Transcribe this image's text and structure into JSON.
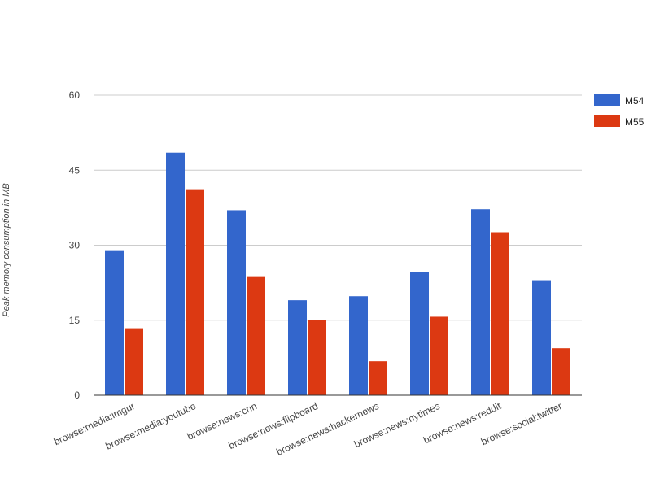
{
  "chart_data": {
    "type": "bar",
    "title": "",
    "xlabel": "",
    "ylabel": "Peak memory consumption in MB",
    "ylim": [
      0,
      60
    ],
    "yticks": [
      0,
      15,
      30,
      45,
      60
    ],
    "grid": true,
    "legend_position": "right",
    "categories": [
      "browse:media:imgur",
      "browse:media:youtube",
      "browse:news:cnn",
      "browse:news:flipboard",
      "browse:news:hackernews",
      "browse:news:nytimes",
      "browse:news:reddit",
      "browse:social:twitter"
    ],
    "series": [
      {
        "name": "M54",
        "color": "#3366cc",
        "values": [
          29.0,
          48.5,
          37.0,
          19.0,
          19.8,
          24.6,
          37.2,
          23.0
        ]
      },
      {
        "name": "M55",
        "color": "#dc3912",
        "values": [
          13.4,
          41.2,
          23.8,
          15.1,
          6.8,
          15.7,
          32.6,
          9.4
        ]
      }
    ]
  }
}
